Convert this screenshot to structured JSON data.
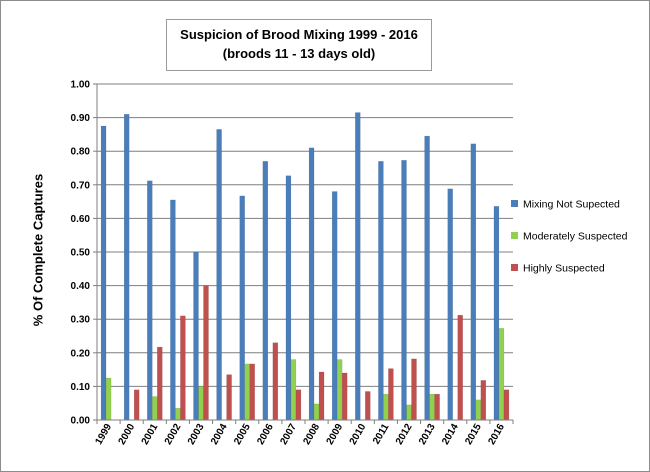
{
  "chart_data": {
    "type": "bar",
    "title_line1": "Suspicion  of Brood Mixing 1999 - 2016",
    "title_line2": "(broods 11 - 13 days old)",
    "ylabel": "% Of Complete Captures",
    "ylim": [
      0,
      1.0
    ],
    "yticks": [
      "0.00",
      "0.10",
      "0.20",
      "0.30",
      "0.40",
      "0.50",
      "0.60",
      "0.70",
      "0.80",
      "0.90",
      "1.00"
    ],
    "grid": true,
    "legend_position": "right",
    "categories": [
      "1999",
      "2000",
      "2001",
      "2002",
      "2003",
      "2004",
      "2005",
      "2006",
      "2007",
      "2008",
      "2009",
      "2010",
      "2011",
      "2012",
      "2013",
      "2014",
      "2015",
      "2016"
    ],
    "series": [
      {
        "name": "Mixing Not Supected",
        "color": "#4a7ebb",
        "values": [
          0.875,
          0.91,
          0.712,
          0.655,
          0.5,
          0.865,
          0.667,
          0.77,
          0.727,
          0.81,
          0.68,
          0.915,
          0.77,
          0.773,
          0.845,
          0.688,
          0.822,
          0.636
        ]
      },
      {
        "name": "Moderately Suspected",
        "color": "#92d050",
        "values": [
          0.125,
          0.0,
          0.07,
          0.035,
          0.1,
          0.0,
          0.167,
          0.0,
          0.18,
          0.048,
          0.18,
          0.0,
          0.077,
          0.045,
          0.077,
          0.0,
          0.06,
          0.273
        ]
      },
      {
        "name": "Highly Suspected",
        "color": "#c0504d",
        "values": [
          0.0,
          0.09,
          0.217,
          0.31,
          0.4,
          0.135,
          0.167,
          0.23,
          0.09,
          0.143,
          0.14,
          0.085,
          0.153,
          0.182,
          0.077,
          0.312,
          0.118,
          0.09
        ]
      }
    ]
  }
}
